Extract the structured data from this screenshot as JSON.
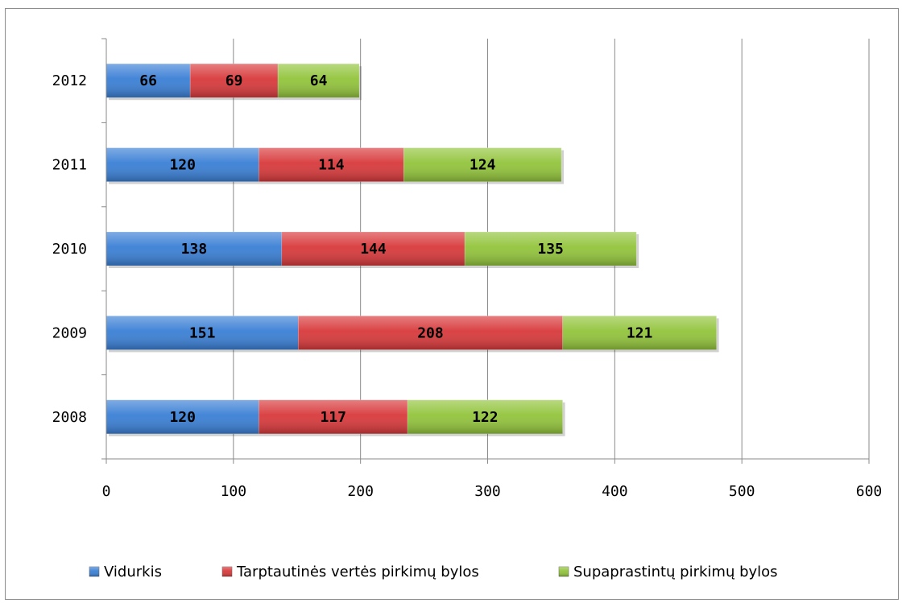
{
  "chart_data": {
    "type": "bar",
    "orientation": "horizontal",
    "stacked": true,
    "categories": [
      "2008",
      "2009",
      "2010",
      "2011",
      "2012"
    ],
    "series": [
      {
        "name": "Vidurkis",
        "values": [
          120,
          151,
          138,
          120,
          66
        ],
        "color": "#3a7fd5"
      },
      {
        "name": "Tarptautinės vertės pirkimų bylos",
        "values": [
          117,
          208,
          144,
          114,
          69
        ],
        "color": "#d8393b"
      },
      {
        "name": "Supaprastintų pirkimų bylos",
        "values": [
          122,
          121,
          135,
          124,
          64
        ],
        "color": "#92c43b"
      }
    ],
    "xlim": [
      0,
      600
    ],
    "xticks": [
      0,
      100,
      200,
      300,
      400,
      500,
      600
    ],
    "title": "",
    "xlabel": "",
    "ylabel": "",
    "grid": "vertical",
    "legend": "bottom"
  }
}
